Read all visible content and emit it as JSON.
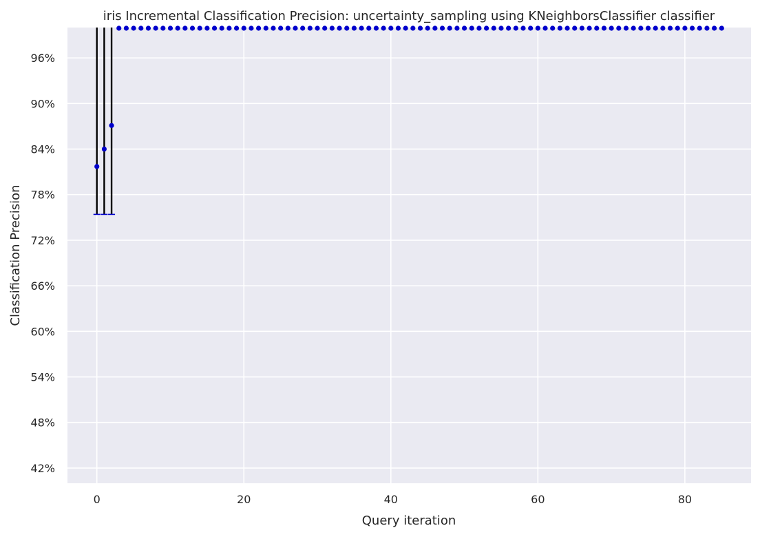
{
  "chart_data": {
    "type": "scatter",
    "title": "iris Incremental Classification Precision: uncertainty_sampling using KNeighborsClassifier classifier",
    "xlabel": "Query iteration",
    "ylabel": "Classification Precision",
    "xlim": [
      -4,
      89
    ],
    "ylim": [
      0.4,
      1.0
    ],
    "x_ticks": [
      0,
      20,
      40,
      60,
      80
    ],
    "x_tick_labels": [
      "0",
      "20",
      "40",
      "60",
      "80"
    ],
    "y_ticks": [
      0.42,
      0.48,
      0.54,
      0.6,
      0.66,
      0.72,
      0.78,
      0.84,
      0.9,
      0.96
    ],
    "y_tick_labels": [
      "42%",
      "48%",
      "54%",
      "60%",
      "66%",
      "72%",
      "78%",
      "84%",
      "90%",
      "96%"
    ],
    "grid": true,
    "colors": {
      "background": "#EAEAF2",
      "grid": "#FFFFFF",
      "points": "#0000CC",
      "error_bars": "#000000"
    },
    "series": [
      {
        "x": [
          0,
          1,
          2,
          3,
          4,
          5,
          6,
          7,
          8,
          9,
          10,
          11,
          12,
          13,
          14,
          15,
          16,
          17,
          18,
          19,
          20,
          21,
          22,
          23,
          24,
          25,
          26,
          27,
          28,
          29,
          30,
          31,
          32,
          33,
          34,
          35,
          36,
          37,
          38,
          39,
          40,
          41,
          42,
          43,
          44,
          45,
          46,
          47,
          48,
          49,
          50,
          51,
          52,
          53,
          54,
          55,
          56,
          57,
          58,
          59,
          60,
          61,
          62,
          63,
          64,
          65,
          66,
          67,
          68,
          69,
          70,
          71,
          72,
          73,
          74,
          75,
          76,
          77,
          78,
          79,
          80,
          81,
          82,
          83,
          84,
          85
        ],
        "y": [
          0.817,
          0.84,
          0.871,
          1.0,
          1.0,
          1.0,
          1.0,
          1.0,
          1.0,
          1.0,
          1.0,
          1.0,
          1.0,
          1.0,
          1.0,
          1.0,
          1.0,
          1.0,
          1.0,
          1.0,
          1.0,
          1.0,
          1.0,
          1.0,
          1.0,
          1.0,
          1.0,
          1.0,
          1.0,
          1.0,
          1.0,
          1.0,
          1.0,
          1.0,
          1.0,
          1.0,
          1.0,
          1.0,
          1.0,
          1.0,
          1.0,
          1.0,
          1.0,
          1.0,
          1.0,
          1.0,
          1.0,
          1.0,
          1.0,
          1.0,
          1.0,
          1.0,
          1.0,
          1.0,
          1.0,
          1.0,
          1.0,
          1.0,
          1.0,
          1.0,
          1.0,
          1.0,
          1.0,
          1.0,
          1.0,
          1.0,
          1.0,
          1.0,
          1.0,
          1.0,
          1.0,
          1.0,
          1.0,
          1.0,
          1.0,
          1.0,
          1.0,
          1.0,
          1.0,
          1.0,
          1.0,
          1.0,
          1.0,
          1.0,
          1.0,
          1.0
        ],
        "error_bars": [
          {
            "x": 0,
            "low": 0.754,
            "high": 1.0
          },
          {
            "x": 1,
            "low": 0.754,
            "high": 1.0
          },
          {
            "x": 2,
            "low": 0.754,
            "high": 1.0
          }
        ]
      }
    ]
  }
}
